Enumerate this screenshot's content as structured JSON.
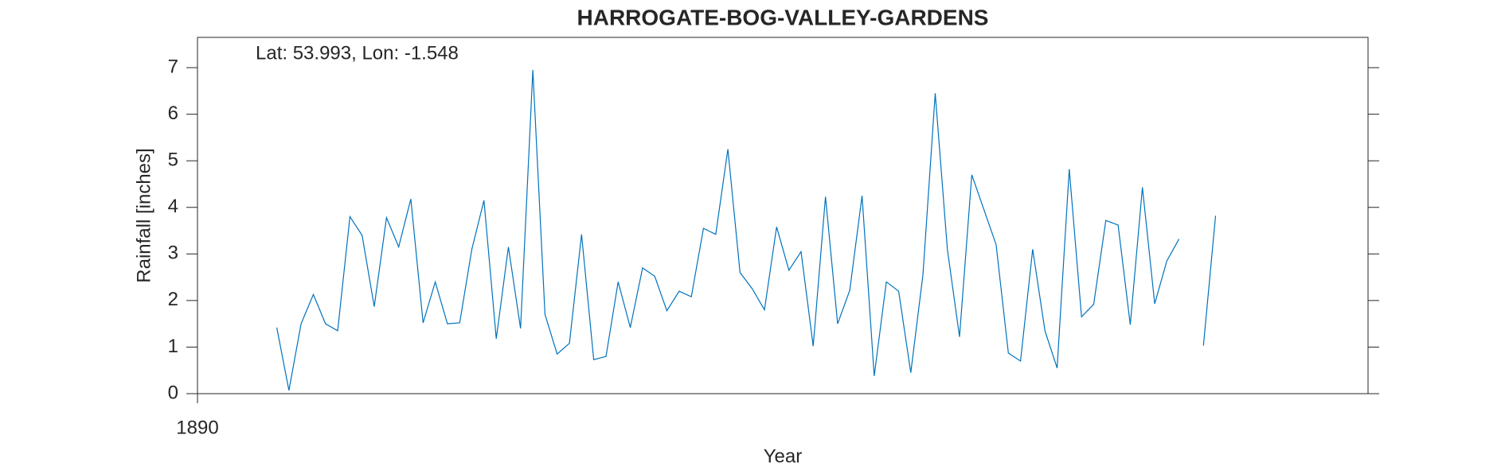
{
  "chart_data": {
    "type": "line",
    "title": "HARROGATE-BOG-VALLEY-GARDENS",
    "annotation": "Lat: 53.993, Lon: -1.548",
    "xlabel": "Year",
    "ylabel": "Rainfall [inches]",
    "xlim": [
      1890,
      1898
    ],
    "xticks": [
      1890
    ],
    "ylim": [
      0,
      7.65
    ],
    "yticks": [
      0,
      1,
      2,
      3,
      4,
      5,
      6,
      7
    ],
    "x": [
      1890.542,
      1890.625,
      1890.708,
      1890.792,
      1890.875,
      1890.958,
      1891.042,
      1891.125,
      1891.208,
      1891.292,
      1891.375,
      1891.458,
      1891.542,
      1891.625,
      1891.708,
      1891.792,
      1891.875,
      1891.958,
      1892.042,
      1892.125,
      1892.208,
      1892.292,
      1892.375,
      1892.458,
      1892.542,
      1892.625,
      1892.708,
      1892.792,
      1892.875,
      1892.958,
      1893.042,
      1893.125,
      1893.208,
      1893.292,
      1893.375,
      1893.458,
      1893.542,
      1893.625,
      1893.708,
      1893.792,
      1893.875,
      1893.958,
      1894.042,
      1894.125,
      1894.208,
      1894.292,
      1894.375,
      1894.458,
      1894.542,
      1894.625,
      1894.708,
      1894.792,
      1894.875,
      1894.958,
      1895.042,
      1895.125,
      1895.208,
      1895.292,
      1895.375,
      1895.458,
      1895.542,
      1895.625,
      1895.708,
      1895.792,
      1895.875,
      1895.958,
      1896.042,
      1896.125,
      1896.208,
      1896.292,
      1896.375,
      1896.458,
      1896.542,
      1896.625,
      1896.708,
      1896.792,
      1896.875,
      1896.958
    ],
    "series": [
      {
        "color": "#0072bd",
        "values": [
          1.42,
          0.07,
          1.5,
          2.13,
          1.5,
          1.35,
          3.8,
          3.4,
          1.87,
          3.78,
          3.15,
          4.18,
          1.52,
          2.4,
          1.5,
          1.52,
          3.1,
          4.15,
          1.18,
          3.15,
          1.4,
          6.95,
          1.7,
          0.85,
          1.08,
          3.42,
          0.73,
          0.8,
          2.4,
          1.42,
          2.7,
          2.52,
          1.78,
          2.2,
          2.08,
          3.55,
          3.42,
          5.25,
          2.6,
          2.25,
          1.8,
          3.58,
          2.65,
          3.05,
          1.02,
          4.23,
          1.5,
          2.22,
          4.25,
          0.38,
          2.4,
          2.2,
          0.45,
          2.55,
          6.45,
          3.1,
          1.22,
          4.7,
          3.95,
          3.2,
          0.87,
          0.7,
          3.1,
          1.35,
          0.55,
          4.82,
          1.65,
          1.92,
          3.72,
          3.62,
          1.48,
          4.43,
          1.93,
          2.85,
          3.32,
          null,
          1.03,
          3.82
        ]
      }
    ]
  }
}
